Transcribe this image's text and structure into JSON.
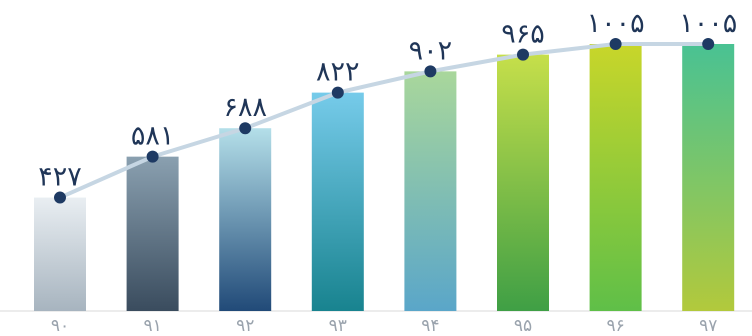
{
  "chart_data": {
    "type": "bar",
    "categories": [
      "۹۰",
      "۹۱",
      "۹۲",
      "۹۳",
      "۹۴",
      "۹۵",
      "۹۶",
      "۹۷"
    ],
    "values": [
      427,
      581,
      688,
      822,
      902,
      965,
      1005,
      1005
    ],
    "value_labels": [
      "۴۲۷",
      "۵۸۱",
      "۶۸۸",
      "۸۲۲",
      "۹۰۲",
      "۹۶۵",
      "۱۰۰۵",
      "۱۰۰۵"
    ],
    "overlay_line": true,
    "ylim": [
      0,
      1050
    ],
    "grid": false,
    "legend": "none",
    "colors": {
      "line": "#c6d6e3",
      "point": "#1e3a63",
      "value_text": "#1f3557",
      "tick_text": "#9aa3ad",
      "baseline": "#d8d8d8",
      "bar_gradients": [
        [
          "#e9eef2",
          "#a7b4bf"
        ],
        [
          "#8aa0b0",
          "#3a4c5e"
        ],
        [
          "#b4dfe9",
          "#214a78"
        ],
        [
          "#76cbea",
          "#18838f"
        ],
        [
          "#a9d79b",
          "#5aa6c9"
        ],
        [
          "#c6df4a",
          "#3f9f45"
        ],
        [
          "#c8d62a",
          "#5fbf48"
        ],
        [
          "#49c293",
          "#b2c93c"
        ]
      ]
    }
  }
}
